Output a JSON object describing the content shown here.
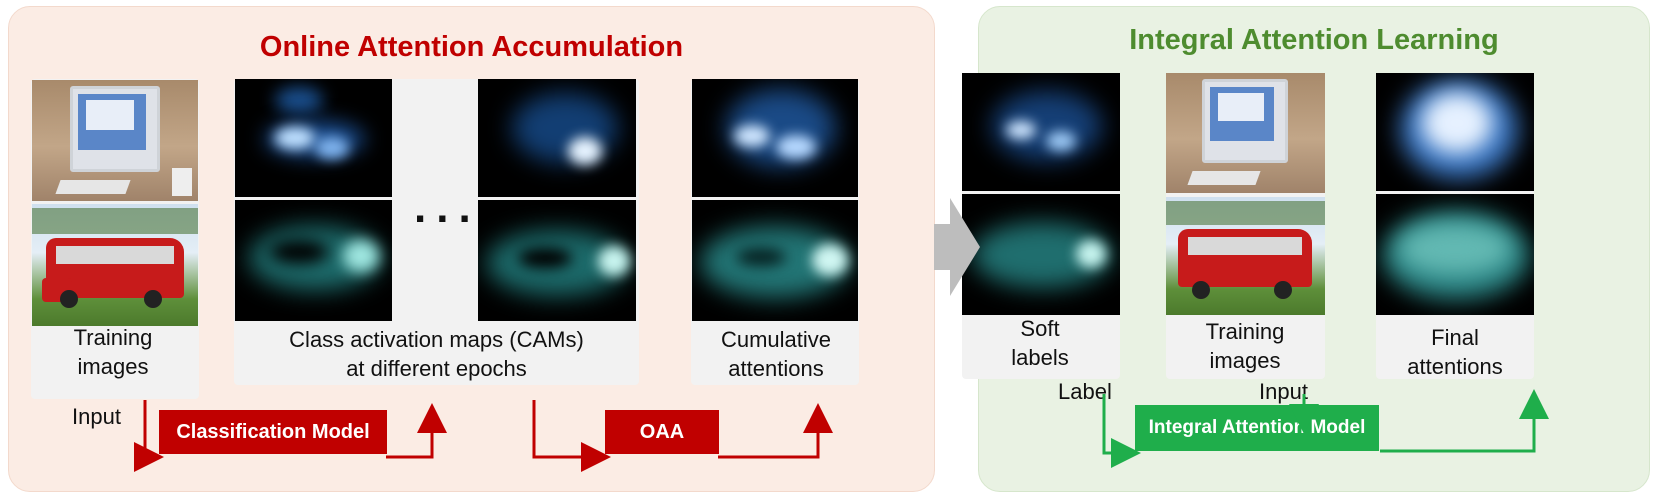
{
  "left_panel": {
    "title": "Online Attention Accumulation",
    "captions": {
      "training": "Training images",
      "cams_line1": "Class activation maps (CAMs)",
      "cams_line2": "at different epochs",
      "cumulative": "Cumulative attentions"
    },
    "ellipsis": "...",
    "input_label": "Input",
    "classification_box": "Classification Model",
    "oaa_box": "OAA"
  },
  "right_panel": {
    "title": "Integral Attention Learning",
    "captions": {
      "soft": "Soft labels",
      "training": "Training images",
      "final": "Final attentions"
    },
    "label_label": "Label",
    "input_label": "Input",
    "model_box": "Integral Attention Model"
  },
  "colors": {
    "red": "#c00000",
    "green": "#1fae4b",
    "left_bg": "#fbece4",
    "right_bg": "#e9f2e3",
    "arrow_gray": "#bdbdbd",
    "title_green": "#4e8c2f"
  }
}
